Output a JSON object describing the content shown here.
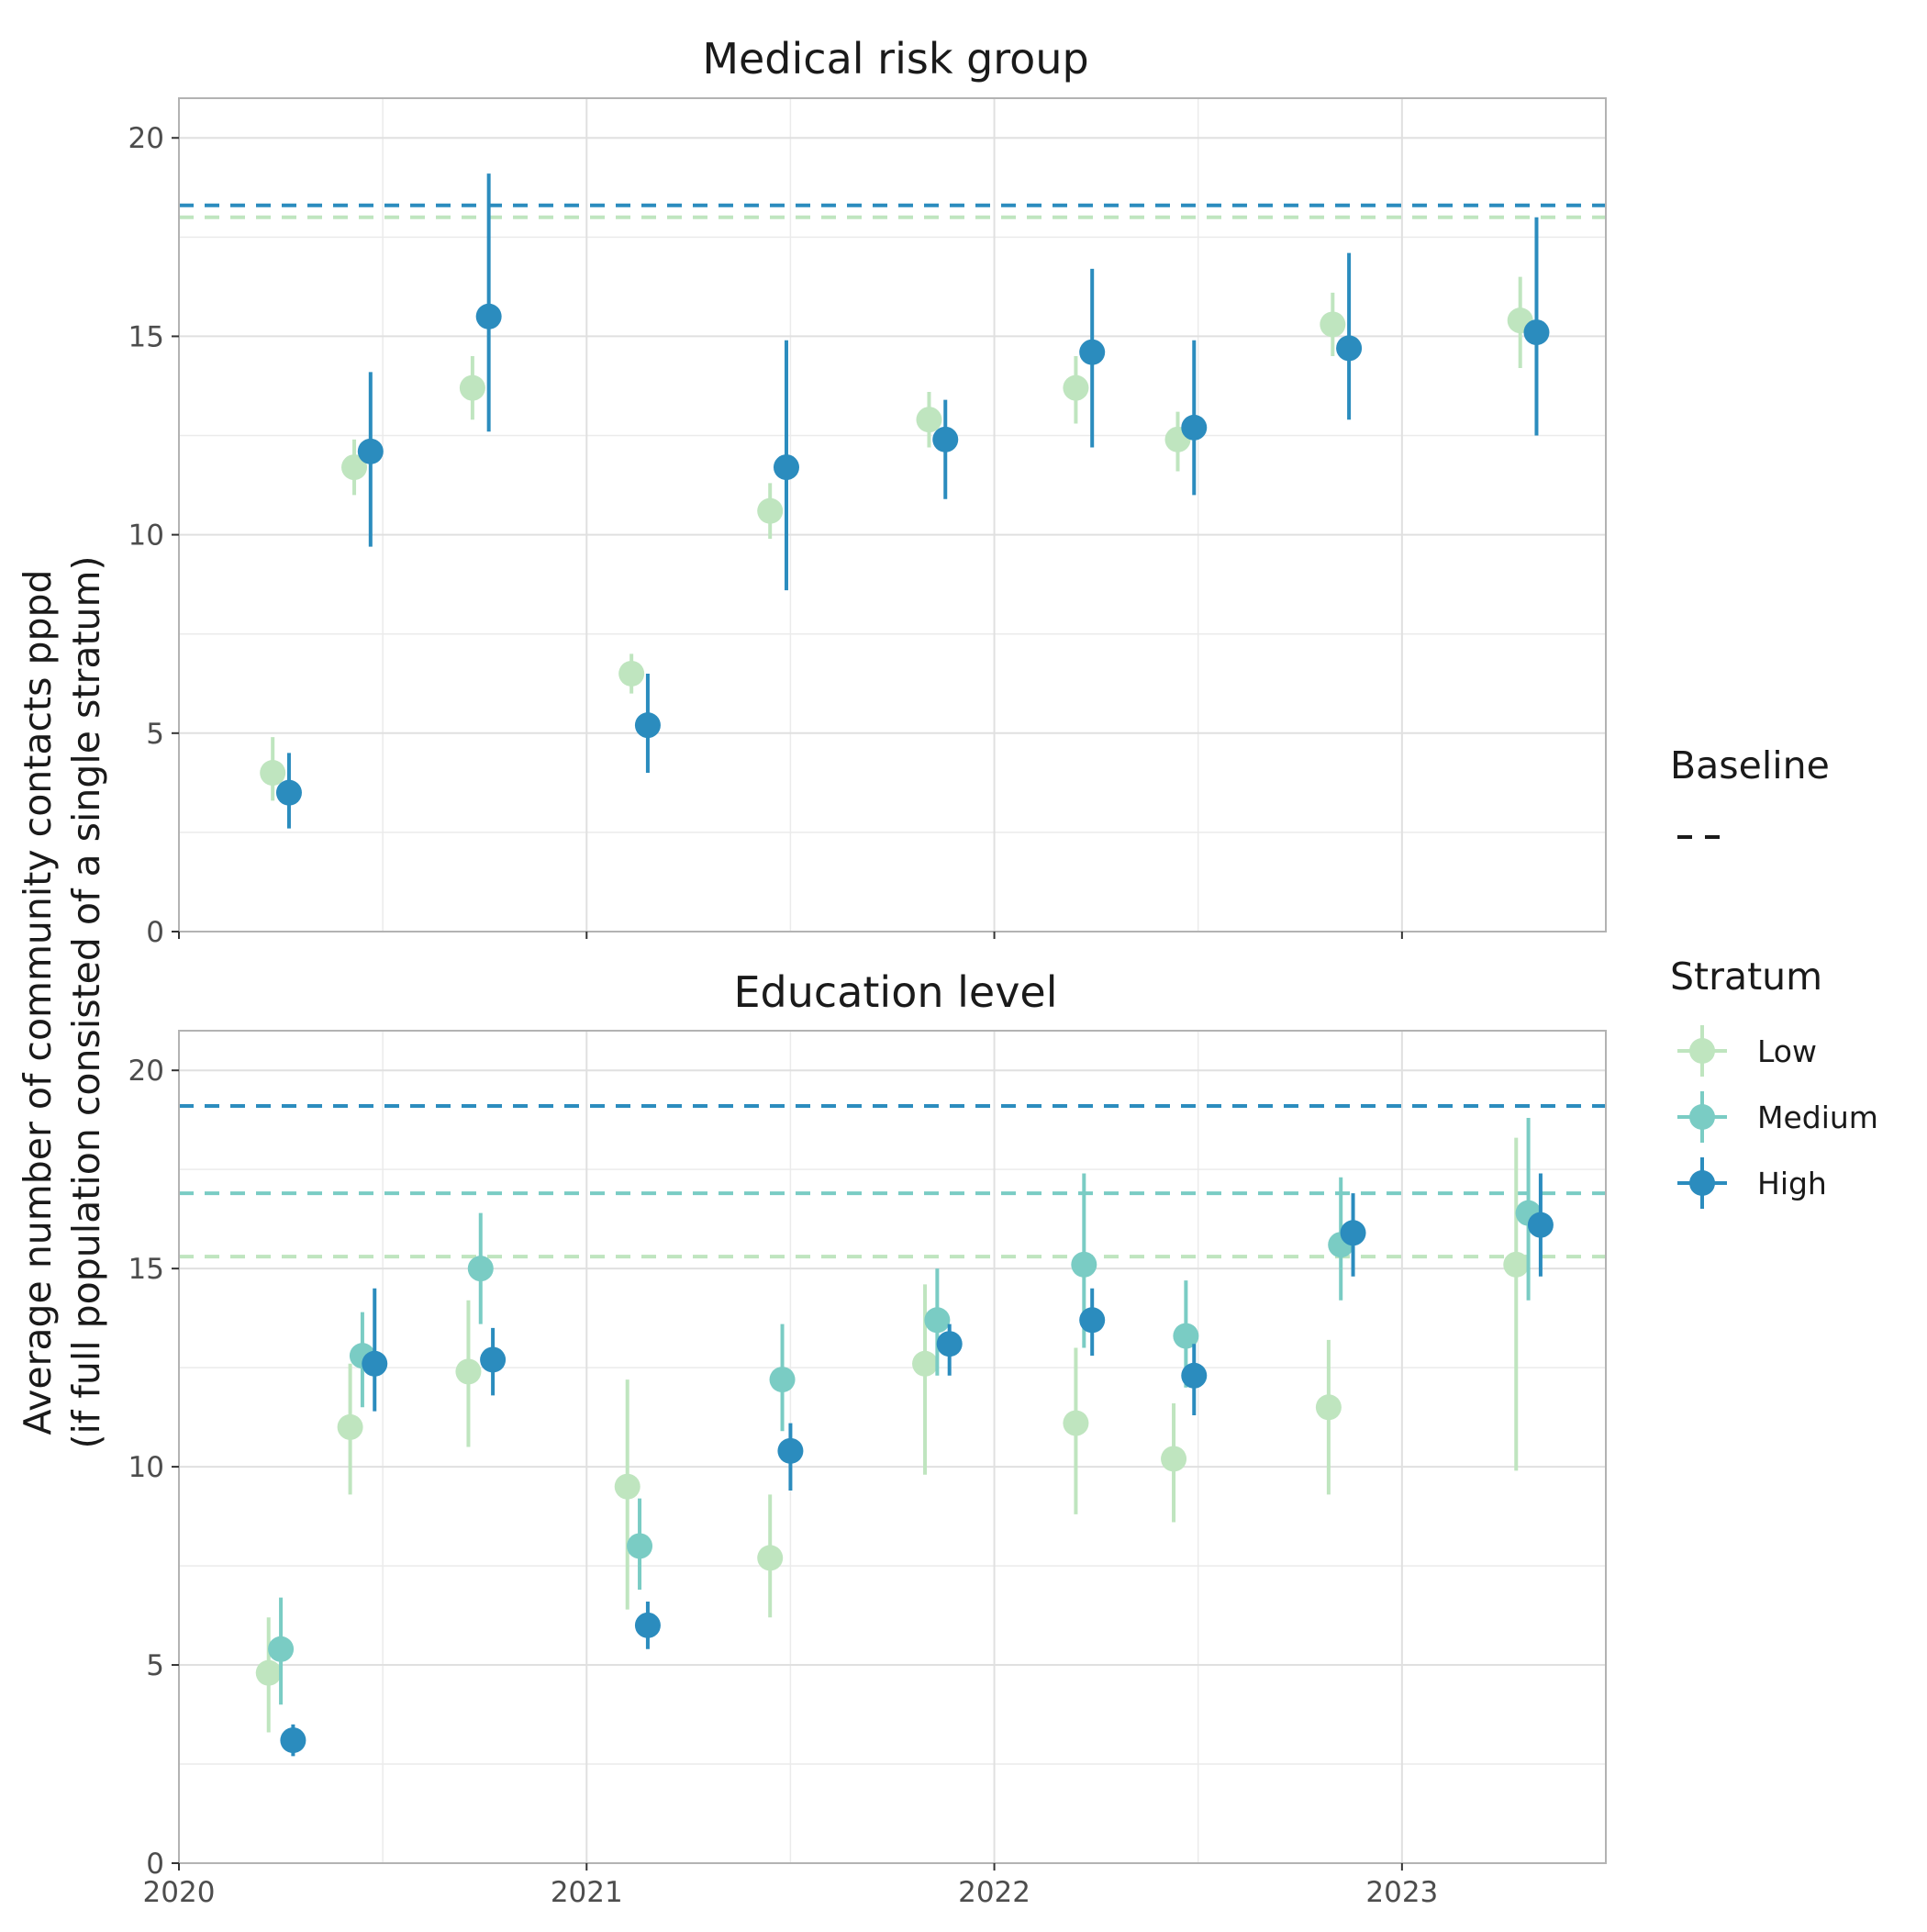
{
  "colors": {
    "Low": "#bfe5bf",
    "Medium": "#7accc4",
    "High": "#2b8cbe",
    "grid": "#ebebeb",
    "panel_border": "#b3b3b3"
  },
  "chart_data": {
    "type": "scatter",
    "subtype": "point-range with horizontal baseline reference lines, faceted",
    "ylabel": "Average number of community contacts pppd",
    "ylabel_line2": "(if full population consisted of a single stratum)",
    "xlabel": "",
    "x_ticks": [
      "2020",
      "2021",
      "2022",
      "2023"
    ],
    "x_tick_values": [
      2020,
      2021,
      2022,
      2023
    ],
    "xlim": [
      2020,
      2023.5
    ],
    "y_ticks": [
      "0",
      "5",
      "10",
      "15",
      "20"
    ],
    "y_tick_values": [
      0,
      5,
      10,
      15,
      20
    ],
    "ylim": [
      0,
      21
    ],
    "grid": true,
    "legend": {
      "position": "right",
      "baseline_title": "Baseline",
      "stratum_title": "Stratum",
      "entries": [
        "Low",
        "Medium",
        "High"
      ]
    },
    "panels": [
      {
        "title": "Medical risk group",
        "baselines": [
          {
            "stratum": "High",
            "value": 18.3
          },
          {
            "stratum": "Low",
            "value": 18.0
          }
        ],
        "series": [
          {
            "name": "Low",
            "points": [
              {
                "x": 2020.23,
                "y": 4.0,
                "lo": 3.3,
                "hi": 4.9
              },
              {
                "x": 2020.43,
                "y": 11.7,
                "lo": 11.0,
                "hi": 12.4
              },
              {
                "x": 2020.72,
                "y": 13.7,
                "lo": 12.9,
                "hi": 14.5
              },
              {
                "x": 2021.11,
                "y": 6.5,
                "lo": 6.0,
                "hi": 7.0
              },
              {
                "x": 2021.45,
                "y": 10.6,
                "lo": 9.9,
                "hi": 11.3
              },
              {
                "x": 2021.84,
                "y": 12.9,
                "lo": 12.2,
                "hi": 13.6
              },
              {
                "x": 2022.2,
                "y": 13.7,
                "lo": 12.8,
                "hi": 14.5
              },
              {
                "x": 2022.45,
                "y": 12.4,
                "lo": 11.6,
                "hi": 13.1
              },
              {
                "x": 2022.83,
                "y": 15.3,
                "lo": 14.5,
                "hi": 16.1
              },
              {
                "x": 2023.29,
                "y": 15.4,
                "lo": 14.2,
                "hi": 16.5
              }
            ]
          },
          {
            "name": "High",
            "points": [
              {
                "x": 2020.27,
                "y": 3.5,
                "lo": 2.6,
                "hi": 4.5
              },
              {
                "x": 2020.47,
                "y": 12.1,
                "lo": 9.7,
                "hi": 14.1
              },
              {
                "x": 2020.76,
                "y": 15.5,
                "lo": 12.6,
                "hi": 19.1
              },
              {
                "x": 2021.15,
                "y": 5.2,
                "lo": 4.0,
                "hi": 6.5
              },
              {
                "x": 2021.49,
                "y": 11.7,
                "lo": 8.6,
                "hi": 14.9
              },
              {
                "x": 2021.88,
                "y": 12.4,
                "lo": 10.9,
                "hi": 13.4
              },
              {
                "x": 2022.24,
                "y": 14.6,
                "lo": 12.2,
                "hi": 16.7
              },
              {
                "x": 2022.49,
                "y": 12.7,
                "lo": 11.0,
                "hi": 14.9
              },
              {
                "x": 2022.87,
                "y": 14.7,
                "lo": 12.9,
                "hi": 17.1
              },
              {
                "x": 2023.33,
                "y": 15.1,
                "lo": 12.5,
                "hi": 18.0
              }
            ]
          }
        ]
      },
      {
        "title": "Education level",
        "baselines": [
          {
            "stratum": "High",
            "value": 19.1
          },
          {
            "stratum": "Medium",
            "value": 16.9
          },
          {
            "stratum": "Low",
            "value": 15.3
          }
        ],
        "series": [
          {
            "name": "Low",
            "points": [
              {
                "x": 2020.22,
                "y": 4.8,
                "lo": 3.3,
                "hi": 6.2
              },
              {
                "x": 2020.42,
                "y": 11.0,
                "lo": 9.3,
                "hi": 12.6
              },
              {
                "x": 2020.71,
                "y": 12.4,
                "lo": 10.5,
                "hi": 14.2
              },
              {
                "x": 2021.1,
                "y": 9.5,
                "lo": 6.4,
                "hi": 12.2
              },
              {
                "x": 2021.45,
                "y": 7.7,
                "lo": 6.2,
                "hi": 9.3
              },
              {
                "x": 2021.83,
                "y": 12.6,
                "lo": 9.8,
                "hi": 14.6
              },
              {
                "x": 2022.2,
                "y": 11.1,
                "lo": 8.8,
                "hi": 13.0
              },
              {
                "x": 2022.44,
                "y": 10.2,
                "lo": 8.6,
                "hi": 11.6
              },
              {
                "x": 2022.82,
                "y": 11.5,
                "lo": 9.3,
                "hi": 13.2
              },
              {
                "x": 2023.28,
                "y": 15.1,
                "lo": 9.9,
                "hi": 18.3
              }
            ]
          },
          {
            "name": "Medium",
            "points": [
              {
                "x": 2020.25,
                "y": 5.4,
                "lo": 4.0,
                "hi": 6.7
              },
              {
                "x": 2020.45,
                "y": 12.8,
                "lo": 11.5,
                "hi": 13.9
              },
              {
                "x": 2020.74,
                "y": 15.0,
                "lo": 13.6,
                "hi": 16.4
              },
              {
                "x": 2021.13,
                "y": 8.0,
                "lo": 6.9,
                "hi": 9.2
              },
              {
                "x": 2021.48,
                "y": 12.2,
                "lo": 10.9,
                "hi": 13.6
              },
              {
                "x": 2021.86,
                "y": 13.7,
                "lo": 12.3,
                "hi": 15.0
              },
              {
                "x": 2022.22,
                "y": 15.1,
                "lo": 13.0,
                "hi": 17.4
              },
              {
                "x": 2022.47,
                "y": 13.3,
                "lo": 12.0,
                "hi": 14.7
              },
              {
                "x": 2022.85,
                "y": 15.6,
                "lo": 14.2,
                "hi": 17.3
              },
              {
                "x": 2023.31,
                "y": 16.4,
                "lo": 14.2,
                "hi": 18.8
              }
            ]
          },
          {
            "name": "High",
            "points": [
              {
                "x": 2020.28,
                "y": 3.1,
                "lo": 2.7,
                "hi": 3.5
              },
              {
                "x": 2020.48,
                "y": 12.6,
                "lo": 11.4,
                "hi": 14.5
              },
              {
                "x": 2020.77,
                "y": 12.7,
                "lo": 11.8,
                "hi": 13.5
              },
              {
                "x": 2021.15,
                "y": 6.0,
                "lo": 5.4,
                "hi": 6.6
              },
              {
                "x": 2021.5,
                "y": 10.4,
                "lo": 9.4,
                "hi": 11.1
              },
              {
                "x": 2021.89,
                "y": 13.1,
                "lo": 12.3,
                "hi": 13.6
              },
              {
                "x": 2022.24,
                "y": 13.7,
                "lo": 12.8,
                "hi": 14.5
              },
              {
                "x": 2022.49,
                "y": 12.3,
                "lo": 11.3,
                "hi": 13.1
              },
              {
                "x": 2022.88,
                "y": 15.9,
                "lo": 14.8,
                "hi": 16.9
              },
              {
                "x": 2023.34,
                "y": 16.1,
                "lo": 14.8,
                "hi": 17.4
              }
            ]
          }
        ]
      }
    ]
  }
}
